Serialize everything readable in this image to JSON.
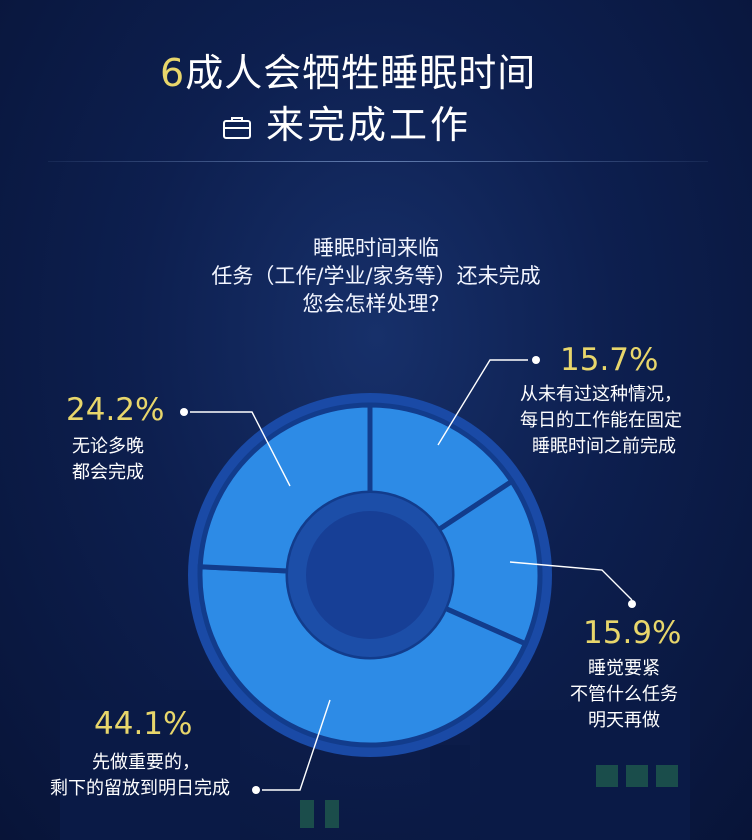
{
  "title": {
    "line1_number": "6",
    "line1_text": "成人会牺牲睡眠时间",
    "line2_icon": "briefcase-icon",
    "line2_text": "来完成工作"
  },
  "question": {
    "lines": [
      "睡眠时间来临",
      "任务（工作/学业/家务等）还未完成",
      "您会怎样处理？"
    ]
  },
  "chart_data": {
    "type": "pie",
    "donut": true,
    "title": "",
    "slices": [
      {
        "label": "从未有过这种情况，每日的工作能在固定睡眠时间之前完成",
        "value": 15.7,
        "display": "15.7%",
        "lines": [
          "从未有过这种情况，",
          "每日的工作能在固定",
          "睡眠时间之前完成"
        ]
      },
      {
        "label": "睡觉要紧不管什么任务明天再做",
        "value": 15.9,
        "display": "15.9%",
        "lines": [
          "睡觉要紧",
          "不管什么任务",
          "明天再做"
        ]
      },
      {
        "label": "先做重要的，剩下的留放到明日完成",
        "value": 44.1,
        "display": "44.1%",
        "lines": [
          "先做重要的，",
          "剩下的留放到明日完成"
        ]
      },
      {
        "label": "无论多晚都会完成",
        "value": 24.2,
        "display": "24.2%",
        "lines": [
          "无论多晚",
          "都会完成"
        ]
      }
    ],
    "colors": {
      "slice_fill": "#2d8be6",
      "outer_ring": "#1a4aa6",
      "center": "#173f96",
      "accent": "#e8d66b"
    }
  }
}
